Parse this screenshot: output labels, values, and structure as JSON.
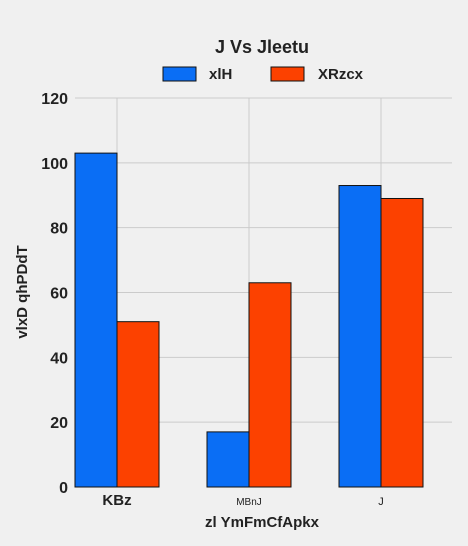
{
  "chart_data": {
    "type": "bar",
    "title": "J Vs Jleetu",
    "xlabel": "zl  YmFmCfApkx",
    "ylabel": "vlxD qhPDdT",
    "categories": [
      "KBz",
      "MBnJ",
      "J"
    ],
    "category_font_sizes": [
      15,
      10,
      11
    ],
    "series": [
      {
        "name": "xlH",
        "values": [
          103,
          17,
          93
        ],
        "color": "#0a6ef5"
      },
      {
        "name": "XRzcx",
        "values": [
          51,
          63,
          89
        ],
        "color": "#fc4100"
      }
    ],
    "ylim": [
      0,
      120
    ],
    "yticks": [
      0,
      20,
      40,
      60,
      80,
      100,
      120
    ],
    "grid": true,
    "legend_position": "top-center",
    "background": "#f0f0f0",
    "grid_color": "#cbcbcb"
  }
}
